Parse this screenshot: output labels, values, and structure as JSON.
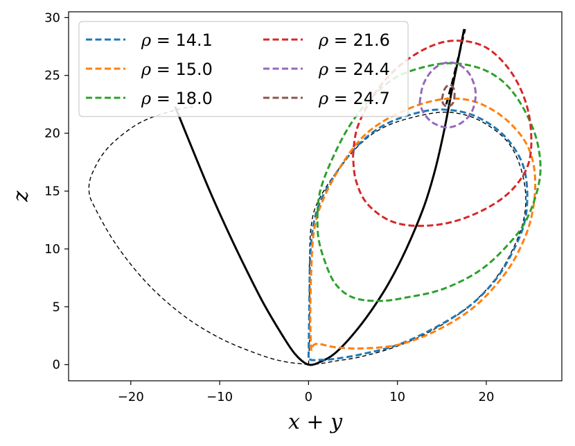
{
  "chart_data": {
    "type": "line",
    "title": "",
    "xlabel": "x + y",
    "ylabel": "z",
    "xlim": [
      -27,
      28.5
    ],
    "ylim": [
      -1.4,
      30.5
    ],
    "xticks": [
      -20,
      -10,
      0,
      10,
      20
    ],
    "yticks": [
      0,
      5,
      10,
      15,
      20,
      25,
      30
    ],
    "xtick_labels": [
      "−20",
      "−10",
      "0",
      "10",
      "20"
    ],
    "ytick_labels": [
      "0",
      "5",
      "10",
      "15",
      "20",
      "25",
      "30"
    ],
    "grid": false,
    "legend": {
      "placement": "top-left",
      "columns": 2,
      "symbol": "ρ"
    },
    "reference_curves": [
      {
        "style": "solid-black",
        "points": [
          [
            -15.0,
            22.3
          ],
          [
            -13,
            18.5
          ],
          [
            -11,
            14.8
          ],
          [
            -9,
            11.4
          ],
          [
            -7,
            8.2
          ],
          [
            -5,
            5.2
          ],
          [
            -3,
            2.6
          ],
          [
            -1.5,
            0.9
          ],
          [
            0,
            0
          ],
          [
            1.5,
            0.3
          ],
          [
            3,
            1.0
          ],
          [
            5,
            2.6
          ],
          [
            7,
            4.6
          ],
          [
            9,
            7.0
          ],
          [
            11,
            10.0
          ],
          [
            13,
            13.7
          ],
          [
            14.3,
            17
          ],
          [
            15.3,
            20.4
          ],
          [
            16.2,
            24.0
          ],
          [
            17,
            27
          ],
          [
            17.5,
            29
          ]
        ]
      },
      {
        "style": "thin-dashed-black",
        "points": [
          [
            0,
            0
          ],
          [
            -3,
            0.3
          ],
          [
            -6,
            1.0
          ],
          [
            -10,
            2.3
          ],
          [
            -14,
            4.2
          ],
          [
            -18,
            6.9
          ],
          [
            -21.5,
            10.2
          ],
          [
            -24,
            13.5
          ],
          [
            -24.7,
            15.0
          ],
          [
            -24.3,
            16.6
          ],
          [
            -22.5,
            18.8
          ],
          [
            -19,
            20.9
          ],
          [
            -15,
            22
          ],
          [
            -13,
            22.3
          ]
        ]
      },
      {
        "style": "thin-dashed-black",
        "points": [
          [
            0,
            0
          ],
          [
            0.1,
            2
          ],
          [
            0.1,
            5
          ],
          [
            0.1,
            9
          ],
          [
            0.3,
            12
          ],
          [
            1,
            14
          ],
          [
            3,
            16.5
          ],
          [
            6,
            19.2
          ],
          [
            9,
            20.7
          ],
          [
            13,
            21.6
          ],
          [
            16,
            21.8
          ],
          [
            19,
            21.2
          ],
          [
            22,
            19.6
          ],
          [
            23.6,
            17.6
          ],
          [
            24.4,
            15
          ],
          [
            24.2,
            12.5
          ],
          [
            23,
            10
          ],
          [
            21,
            7.4
          ],
          [
            18,
            5
          ],
          [
            14,
            3
          ],
          [
            10,
            1.6
          ],
          [
            6,
            0.7
          ],
          [
            3,
            0.3
          ],
          [
            1,
            0.05
          ],
          [
            0,
            0
          ]
        ]
      },
      {
        "style": "thick-dashed-black",
        "points": [
          [
            15.5,
            22.5
          ],
          [
            16.2,
            24.5
          ],
          [
            16.9,
            26.7
          ],
          [
            17.6,
            29.0
          ]
        ]
      }
    ],
    "series": [
      {
        "name": "ρ = 14.1",
        "color": "#1f77b4",
        "points": [
          [
            0,
            0.6
          ],
          [
            0.05,
            3
          ],
          [
            0.1,
            6
          ],
          [
            0.2,
            9.5
          ],
          [
            0.6,
            12.3
          ],
          [
            1.5,
            14.4
          ],
          [
            3.5,
            17
          ],
          [
            6,
            19.3
          ],
          [
            9,
            20.9
          ],
          [
            13,
            21.9
          ],
          [
            16,
            22
          ],
          [
            19,
            21.4
          ],
          [
            22,
            19.8
          ],
          [
            24,
            17.5
          ],
          [
            24.6,
            15
          ],
          [
            24.3,
            12.3
          ],
          [
            23,
            9.8
          ],
          [
            21,
            7.3
          ],
          [
            18,
            5
          ],
          [
            14,
            3.1
          ],
          [
            10,
            1.7
          ],
          [
            6,
            0.9
          ],
          [
            3,
            0.5
          ],
          [
            1,
            0.4
          ],
          [
            0.3,
            0.4
          ],
          [
            0,
            0.6
          ]
        ]
      },
      {
        "name": "ρ = 15.0",
        "color": "#ff7f0e",
        "points": [
          [
            0.3,
            1.2
          ],
          [
            0.2,
            4
          ],
          [
            0.3,
            8
          ],
          [
            0.6,
            11.5
          ],
          [
            1.5,
            14
          ],
          [
            3.5,
            17
          ],
          [
            6,
            19.6
          ],
          [
            9,
            21.3
          ],
          [
            13,
            22.6
          ],
          [
            16.5,
            23
          ],
          [
            19.5,
            22.5
          ],
          [
            22.5,
            21
          ],
          [
            24.7,
            18.8
          ],
          [
            25.5,
            16
          ],
          [
            25,
            12.5
          ],
          [
            23.3,
            9.3
          ],
          [
            21,
            6.8
          ],
          [
            18,
            4.6
          ],
          [
            14,
            2.8
          ],
          [
            10,
            1.7
          ],
          [
            6,
            1.4
          ],
          [
            3,
            1.5
          ],
          [
            1,
            1.8
          ],
          [
            0.4,
            1.5
          ],
          [
            0.3,
            1.2
          ]
        ]
      },
      {
        "name": "ρ = 18.0",
        "color": "#2ca02c",
        "points": [
          [
            1.0,
            13.0
          ],
          [
            1.3,
            15
          ],
          [
            2.5,
            17.5
          ],
          [
            4.5,
            20.5
          ],
          [
            7,
            23
          ],
          [
            10,
            24.9
          ],
          [
            14,
            25.9
          ],
          [
            17,
            26
          ],
          [
            20,
            25.4
          ],
          [
            22.5,
            24
          ],
          [
            24.5,
            21.7
          ],
          [
            25.8,
            19
          ],
          [
            26,
            16
          ],
          [
            24.5,
            12.5
          ],
          [
            22,
            10
          ],
          [
            19,
            8
          ],
          [
            15,
            6.5
          ],
          [
            11,
            5.8
          ],
          [
            8,
            5.5
          ],
          [
            5,
            5.8
          ],
          [
            3,
            7
          ],
          [
            1.8,
            9
          ],
          [
            1.1,
            11
          ],
          [
            1.0,
            13.0
          ]
        ]
      },
      {
        "name": "ρ = 21.6",
        "color": "#d62728",
        "points": [
          [
            5,
            18
          ],
          [
            5.5,
            20.5
          ],
          [
            7.5,
            23.5
          ],
          [
            10.5,
            26
          ],
          [
            14,
            27.6
          ],
          [
            17,
            28
          ],
          [
            20,
            27.4
          ],
          [
            22.5,
            25.6
          ],
          [
            24.2,
            23.2
          ],
          [
            25,
            20.5
          ],
          [
            24.8,
            17.5
          ],
          [
            23,
            15.2
          ],
          [
            20,
            13.5
          ],
          [
            16,
            12.3
          ],
          [
            12,
            12
          ],
          [
            9,
            12.5
          ],
          [
            6.5,
            14
          ],
          [
            5.3,
            16
          ],
          [
            5,
            18
          ]
        ]
      },
      {
        "name": "ρ = 24.4",
        "color": "#9467bd",
        "points": [
          [
            12.5,
            22.6
          ],
          [
            12.9,
            24.2
          ],
          [
            14,
            25.5
          ],
          [
            15.5,
            26.1
          ],
          [
            17,
            25.9
          ],
          [
            18.2,
            25
          ],
          [
            18.8,
            23.5
          ],
          [
            18.4,
            21.9
          ],
          [
            17.2,
            20.9
          ],
          [
            15.6,
            20.5
          ],
          [
            14,
            20.9
          ],
          [
            13,
            21.7
          ],
          [
            12.5,
            22.6
          ]
        ]
      },
      {
        "name": "ρ = 24.7",
        "color": "#8c564b",
        "points": [
          [
            15.0,
            22.9
          ],
          [
            15.3,
            23.8
          ],
          [
            15.9,
            24.2
          ],
          [
            16.4,
            23.7
          ],
          [
            16.3,
            22.7
          ],
          [
            15.7,
            22.3
          ],
          [
            15.2,
            22.5
          ],
          [
            15.0,
            22.9
          ]
        ]
      }
    ]
  },
  "legend_entries": [
    {
      "sym": "ρ",
      "rest": " = 14.1",
      "color": "#1f77b4"
    },
    {
      "sym": "ρ",
      "rest": " = 15.0",
      "color": "#ff7f0e"
    },
    {
      "sym": "ρ",
      "rest": " = 18.0",
      "color": "#2ca02c"
    },
    {
      "sym": "ρ",
      "rest": " = 21.6",
      "color": "#d62728"
    },
    {
      "sym": "ρ",
      "rest": " = 24.4",
      "color": "#9467bd"
    },
    {
      "sym": "ρ",
      "rest": " = 24.7",
      "color": "#8c564b"
    }
  ]
}
